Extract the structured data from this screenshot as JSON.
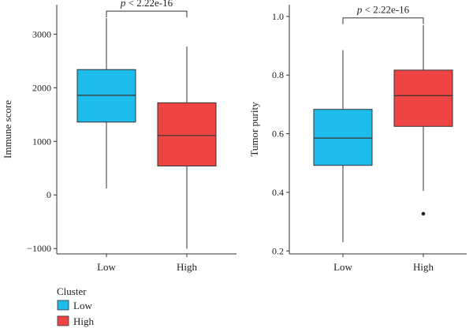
{
  "colors": {
    "low": "#1ebcea",
    "high": "#ee4444"
  },
  "legend": {
    "title": "Cluster",
    "items": [
      {
        "label": "Low",
        "color": "#1ebcea"
      },
      {
        "label": "High",
        "color": "#ee4444"
      }
    ]
  },
  "chart_data": [
    {
      "type": "box",
      "ylabel": "Immune score",
      "ylim": [
        -1100,
        3550
      ],
      "yticks": [
        -1000,
        0,
        1000,
        2000,
        3000
      ],
      "yticklabels": [
        "−1000",
        "0",
        "1000",
        "2000",
        "3000"
      ],
      "categories": [
        "Low",
        "High"
      ],
      "boxes": [
        {
          "category": "Low",
          "whisker_low": 120,
          "q1": 1360,
          "median": 1860,
          "q3": 2340,
          "whisker_high": 3300,
          "outliers": []
        },
        {
          "category": "High",
          "whisker_low": -1000,
          "q1": 540,
          "median": 1110,
          "q3": 1720,
          "whisker_high": 2770,
          "outliers": []
        }
      ],
      "annotation": {
        "p": "p",
        "text": " < 2.22e-16",
        "bracket_y": 3430
      }
    },
    {
      "type": "box",
      "ylabel": "Tumor purity",
      "ylim": [
        0.19,
        1.04
      ],
      "yticks": [
        0.2,
        0.4,
        0.6,
        0.8,
        1.0
      ],
      "yticklabels": [
        "0.2",
        "0.4",
        "0.6",
        "0.8",
        "1.0"
      ],
      "categories": [
        "Low",
        "High"
      ],
      "boxes": [
        {
          "category": "Low",
          "whisker_low": 0.23,
          "q1": 0.492,
          "median": 0.585,
          "q3": 0.683,
          "whisker_high": 0.885,
          "outliers": []
        },
        {
          "category": "High",
          "whisker_low": 0.405,
          "q1": 0.625,
          "median": 0.73,
          "q3": 0.817,
          "whisker_high": 0.97,
          "outliers": [
            0.327
          ]
        }
      ],
      "annotation": {
        "p": "p",
        "text": " < 2.22e-16",
        "bracket_y": 0.995
      }
    }
  ]
}
